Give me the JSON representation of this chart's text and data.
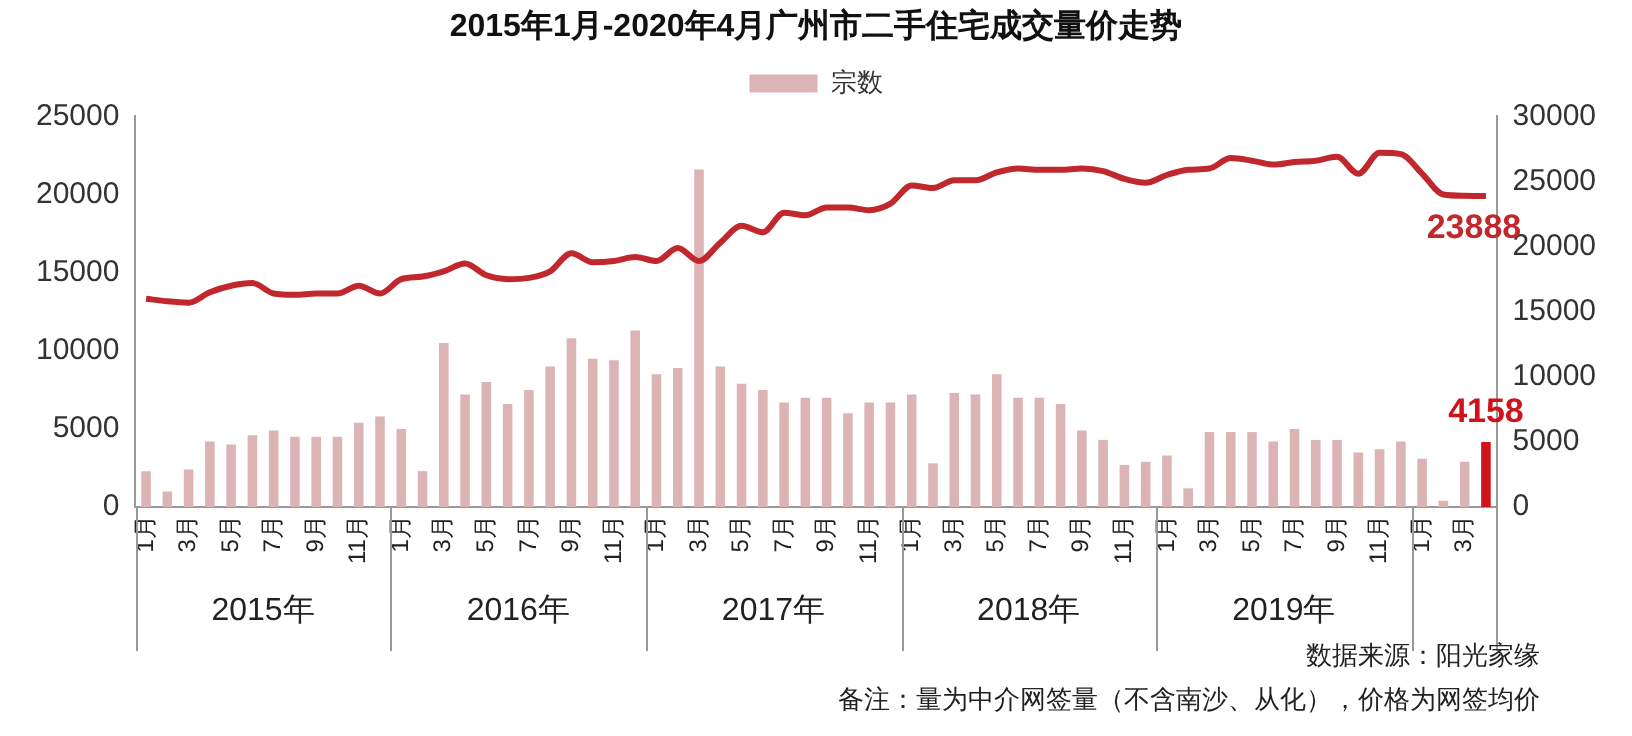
{
  "chart_data": {
    "type": "bar",
    "title": "2015年1月-2020年4月广州市二手住宅成交量价走势",
    "categories": [
      "1月",
      null,
      "3月",
      null,
      "5月",
      null,
      "7月",
      null,
      "9月",
      null,
      "11月",
      null,
      "1月",
      null,
      "3月",
      null,
      "5月",
      null,
      "7月",
      null,
      "9月",
      null,
      "11月",
      null,
      "1月",
      null,
      "3月",
      null,
      "5月",
      null,
      "7月",
      null,
      "9月",
      null,
      "11月",
      null,
      "1月",
      null,
      "3月",
      null,
      "5月",
      null,
      "7月",
      null,
      "9月",
      null,
      "11月",
      null,
      "1月",
      null,
      "3月",
      null,
      "5月",
      null,
      "7月",
      null,
      "9月",
      null,
      "11月",
      null,
      "1月",
      null,
      "3月",
      null
    ],
    "series": [
      {
        "name": "宗数",
        "color": "#dcb4b5",
        "colors": [
          null,
          null,
          null,
          null,
          null,
          null,
          null,
          null,
          null,
          null,
          null,
          null,
          null,
          null,
          null,
          null,
          null,
          null,
          null,
          null,
          null,
          null,
          null,
          null,
          null,
          null,
          null,
          null,
          null,
          null,
          null,
          null,
          null,
          null,
          null,
          null,
          null,
          null,
          null,
          null,
          null,
          null,
          null,
          null,
          null,
          null,
          null,
          null,
          null,
          null,
          null,
          null,
          null,
          null,
          null,
          null,
          null,
          null,
          null,
          null,
          null,
          null,
          null,
          "#d0121b"
        ],
        "values": [
          2300,
          1000,
          2400,
          4200,
          4000,
          4600,
          4900,
          4500,
          4500,
          4500,
          5400,
          5800,
          5000,
          2300,
          10500,
          7200,
          8000,
          6600,
          7500,
          9000,
          10800,
          9500,
          9400,
          11300,
          8500,
          8900,
          21600,
          9000,
          7900,
          7500,
          6700,
          7000,
          7000,
          6000,
          6700,
          6700,
          7200,
          2800,
          7300,
          7200,
          8500,
          7000,
          7000,
          6600,
          4900,
          4300,
          2700,
          2900,
          3300,
          1200,
          4800,
          4800,
          4800,
          4200,
          5000,
          4300,
          4300,
          3500,
          3700,
          4200,
          3100,
          400,
          2900,
          4158
        ],
        "value_labels": [
          null,
          null,
          null,
          null,
          null,
          null,
          null,
          null,
          null,
          null,
          null,
          null,
          null,
          null,
          null,
          null,
          null,
          null,
          null,
          null,
          null,
          null,
          null,
          null,
          null,
          null,
          null,
          null,
          null,
          null,
          null,
          null,
          null,
          null,
          null,
          null,
          null,
          null,
          null,
          null,
          null,
          null,
          null,
          null,
          null,
          null,
          null,
          null,
          null,
          null,
          null,
          null,
          null,
          null,
          null,
          null,
          null,
          null,
          null,
          null,
          null,
          null,
          null,
          "4158"
        ]
      },
      {
        "type": "line",
        "axis": "y2",
        "color": "#c0282d",
        "values": [
          16000,
          15800,
          15700,
          16500,
          17000,
          17200,
          16400,
          16300,
          16400,
          16400,
          17000,
          16400,
          17500,
          17700,
          18100,
          18700,
          17800,
          17500,
          17600,
          18100,
          19500,
          18800,
          18900,
          19200,
          18900,
          19900,
          18900,
          20300,
          21600,
          21100,
          22600,
          22400,
          23000,
          23000,
          22800,
          23300,
          24700,
          24500,
          25100,
          25100,
          25700,
          26000,
          25900,
          25900,
          26000,
          25800,
          25200,
          24900,
          25500,
          25900,
          26000,
          26800,
          26600,
          26300,
          26500,
          26600,
          26900,
          25600,
          27200,
          27100,
          25600,
          24000,
          23900,
          23888
        ],
        "value_labels": [
          null,
          null,
          null,
          null,
          null,
          null,
          null,
          null,
          null,
          null,
          null,
          null,
          null,
          null,
          null,
          null,
          null,
          null,
          null,
          null,
          null,
          null,
          null,
          null,
          null,
          null,
          null,
          null,
          null,
          null,
          null,
          null,
          null,
          null,
          null,
          null,
          null,
          null,
          null,
          null,
          null,
          null,
          null,
          null,
          null,
          null,
          null,
          null,
          null,
          null,
          null,
          null,
          null,
          null,
          null,
          null,
          null,
          null,
          null,
          null,
          null,
          null,
          null,
          "23888"
        ]
      }
    ],
    "ylim": [
      0,
      25000
    ],
    "yticks": [
      0,
      5000,
      10000,
      15000,
      20000,
      25000
    ],
    "y2lim": [
      0,
      30000
    ],
    "y2ticks": [
      0,
      5000,
      10000,
      15000,
      20000,
      25000,
      30000
    ],
    "legend": "top",
    "grid": false,
    "marker": "none",
    "line_style": "solid",
    "annotations": [
      "2015年",
      "2016年",
      "2017年",
      "2018年",
      "2019年",
      "数据来源：阳光家缘",
      "备注：量为中介网签量（不含南沙、从化），价格为网签均价"
    ]
  }
}
